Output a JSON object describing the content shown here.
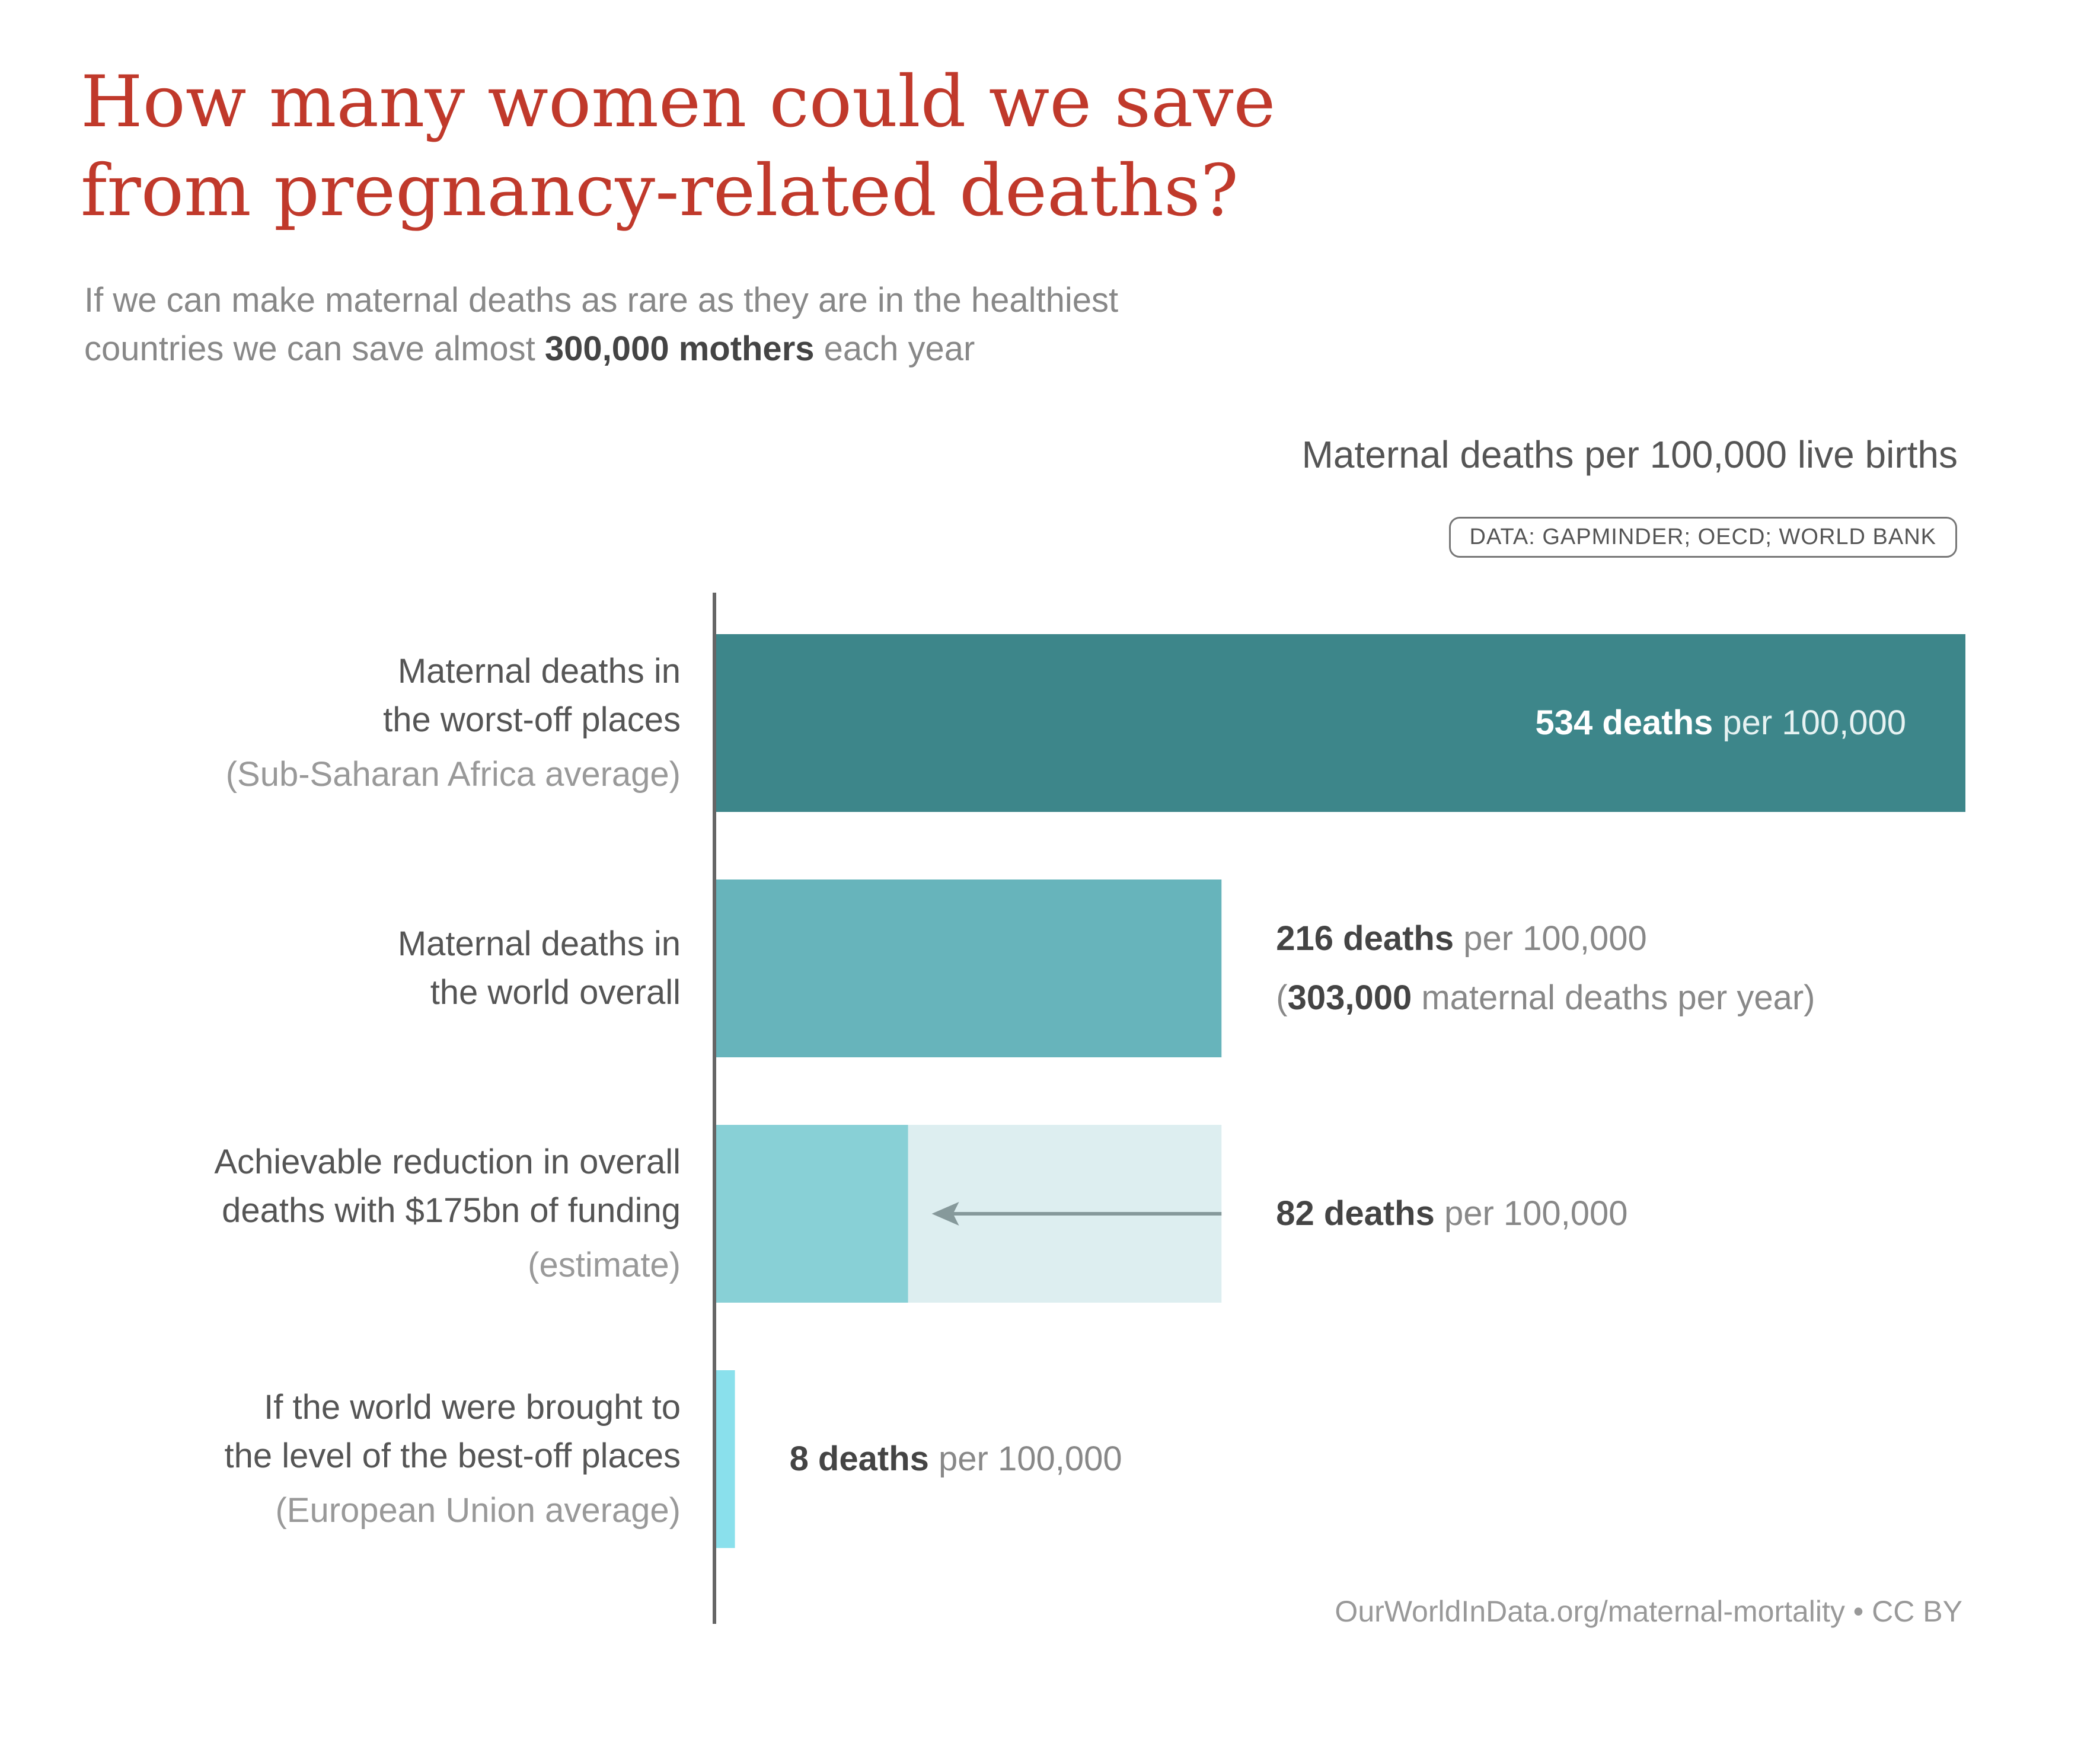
{
  "title_line1": "How many women could we save",
  "title_line2": "from pregnancy-related deaths?",
  "subtitle": {
    "line1": "If we can make maternal deaths as rare as they are in the healthiest",
    "line2_pre": "countries we can save almost ",
    "line2_bold": "300,000 mothers",
    "line2_post": " each year"
  },
  "source": "DATA:  GAPMINDER; OECD; WORLD BANK",
  "footer": "OurWorldInData.org/maternal-mortality • CC BY",
  "colors": {
    "worst": "#3d868a",
    "world": "#67b4bb",
    "achievable": "#88d0d6",
    "achievable_bg": "#ddeef0",
    "best": "#8ae0ec",
    "axis": "#666666",
    "arrow": "#86999b"
  },
  "chart_data": {
    "type": "bar",
    "orientation": "horizontal",
    "title": "Maternal deaths per 100,000 live births",
    "unit_label": "per 100,000",
    "value_suffix": " deaths",
    "xlim": [
      0,
      534
    ],
    "categories": [
      {
        "label_lines": [
          "Maternal deaths in",
          "the worst-off places"
        ],
        "note": "(Sub-Saharan Africa average)",
        "value": 534,
        "color_key": "worst",
        "label_inside": true
      },
      {
        "label_lines": [
          "Maternal deaths in",
          "the world overall"
        ],
        "note": "",
        "value": 216,
        "color_key": "world",
        "extra_pre": "(",
        "extra_bold": "303,000",
        "extra_post": " maternal deaths per year)"
      },
      {
        "label_lines": [
          "Achievable reduction in overall",
          "deaths with $175bn of funding"
        ],
        "note": "(estimate)",
        "value": 82,
        "from_value": 216,
        "color_key": "achievable",
        "bg_color_key": "achievable_bg",
        "arrow": true
      },
      {
        "label_lines": [
          "If the world were brought to",
          "the level of the best-off places"
        ],
        "note": "(European Union average)",
        "value": 8,
        "color_key": "best"
      }
    ]
  }
}
